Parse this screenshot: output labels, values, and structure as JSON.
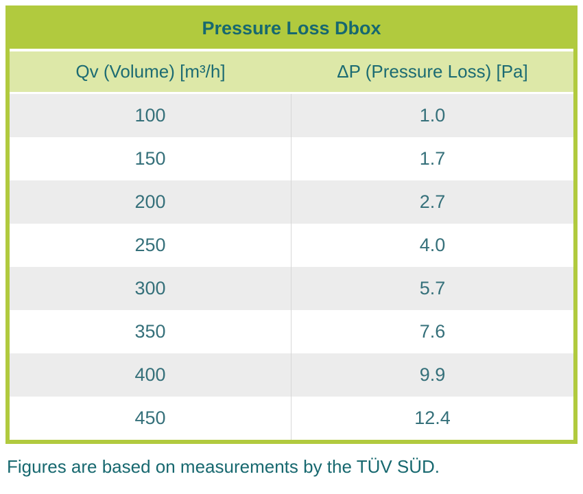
{
  "table": {
    "title": "Pressure Loss Dbox",
    "columns": [
      "Qv (Volume) [m³/h]",
      "ΔP (Pressure Loss) [Pa]"
    ],
    "rows": [
      [
        "100",
        "1.0"
      ],
      [
        "150",
        "1.7"
      ],
      [
        "200",
        "2.7"
      ],
      [
        "250",
        "4.0"
      ],
      [
        "300",
        "5.7"
      ],
      [
        "350",
        "7.6"
      ],
      [
        "400",
        "9.9"
      ],
      [
        "450",
        "12.4"
      ]
    ]
  },
  "footer": "Figures are based on measurements by the TÜV SÜD.",
  "colors": {
    "accent_green": "#b1ca3e",
    "header_green": "#dde8a8",
    "teal_text": "#17686f",
    "data_text": "#35707a",
    "row_gray": "#ececec"
  },
  "chart_data": {
    "type": "table",
    "title": "Pressure Loss Dbox",
    "columns": [
      "Qv (Volume) [m³/h]",
      "ΔP (Pressure Loss) [Pa]"
    ],
    "x": [
      100,
      150,
      200,
      250,
      300,
      350,
      400,
      450
    ],
    "y": [
      1.0,
      1.7,
      2.7,
      4.0,
      5.7,
      7.6,
      9.9,
      12.4
    ],
    "xlabel": "Qv (Volume) [m³/h]",
    "ylabel": "ΔP (Pressure Loss) [Pa]",
    "footnote": "Figures are based on measurements by the TÜV SÜD."
  }
}
